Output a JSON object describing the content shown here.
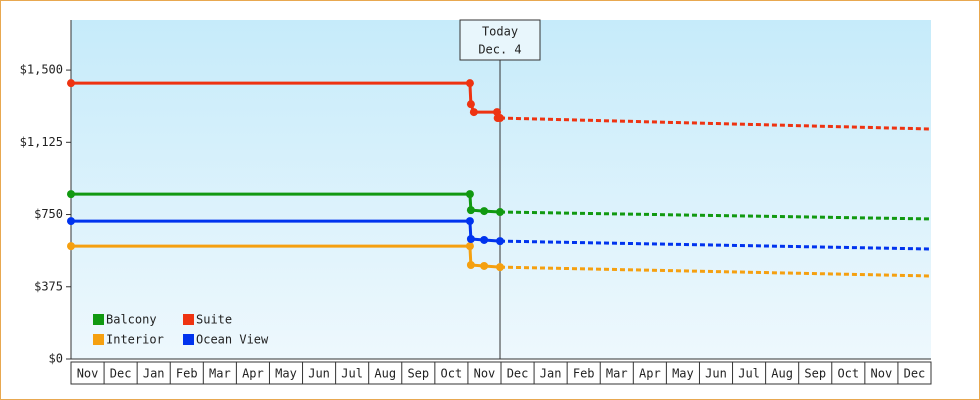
{
  "chart_data": {
    "type": "line",
    "categories": [
      "Nov",
      "Dec",
      "Jan",
      "Feb",
      "Mar",
      "Apr",
      "May",
      "Jun",
      "Jul",
      "Aug",
      "Sep",
      "Oct",
      "Nov",
      "Dec",
      "Jan",
      "Feb",
      "Mar",
      "Apr",
      "May",
      "Jun",
      "Jul",
      "Aug",
      "Sep",
      "Oct",
      "Nov",
      "Dec"
    ],
    "xlim": [
      0,
      26
    ],
    "ylim": [
      0,
      1760
    ],
    "yticks": [
      {
        "value": 0,
        "label": "$0"
      },
      {
        "value": 375,
        "label": "$375"
      },
      {
        "value": 750,
        "label": "$750"
      },
      {
        "value": 1125,
        "label": "$1,125"
      },
      {
        "value": 1500,
        "label": "$1,500"
      }
    ],
    "annotation": {
      "x": 12.97,
      "lines": [
        "Today",
        "Dec. 4"
      ]
    },
    "series": [
      {
        "name": "Balcony",
        "color": "#119911",
        "x": [
          0,
          12.06,
          12.09,
          12.49,
          12.97
        ],
        "values": [
          856,
          856,
          773,
          768,
          763
        ],
        "forecast_x": [
          12.97,
          26
        ],
        "forecast_values": [
          763,
          727
        ]
      },
      {
        "name": "Suite",
        "color": "#ee3311",
        "x": [
          0,
          12.06,
          12.09,
          12.18,
          12.88,
          12.9,
          12.97
        ],
        "values": [
          1432,
          1432,
          1323,
          1282,
          1282,
          1251,
          1251
        ],
        "forecast_x": [
          12.97,
          26
        ],
        "forecast_values": [
          1251,
          1194
        ]
      },
      {
        "name": "Interior",
        "color": "#f5a010",
        "x": [
          0,
          12.06,
          12.09,
          12.49,
          12.97
        ],
        "values": [
          586,
          586,
          488,
          483,
          477
        ],
        "forecast_x": [
          12.97,
          26
        ],
        "forecast_values": [
          477,
          431
        ]
      },
      {
        "name": "Ocean View",
        "color": "#0033ee",
        "x": [
          0,
          12.06,
          12.09,
          12.49,
          12.97
        ],
        "values": [
          716,
          716,
          623,
          618,
          612
        ],
        "forecast_x": [
          12.97,
          26
        ],
        "forecast_values": [
          612,
          571
        ]
      }
    ]
  }
}
